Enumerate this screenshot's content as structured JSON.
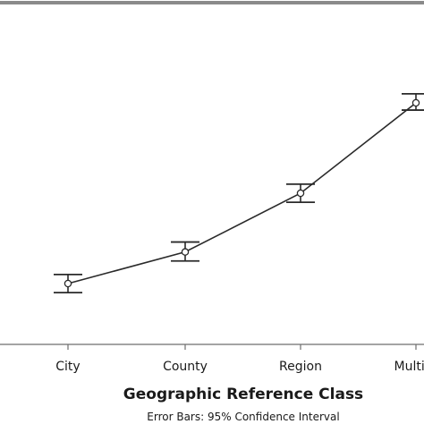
{
  "chart_data": {
    "type": "line",
    "categories": [
      "City",
      "County",
      "Region",
      "Multi-R"
    ],
    "series": [
      {
        "values": [
          3.2,
          3.55,
          4.2,
          5.2
        ],
        "error_low": [
          3.1,
          3.45,
          4.1,
          5.12
        ],
        "error_high": [
          3.3,
          3.66,
          4.3,
          5.3
        ]
      }
    ],
    "xlabel": "Geographic Reference Class",
    "footnote": "Error Bars: 95% Confidence Interval",
    "ylim": [
      2.5,
      6.0
    ],
    "grid": false,
    "marker": "open-circle"
  }
}
